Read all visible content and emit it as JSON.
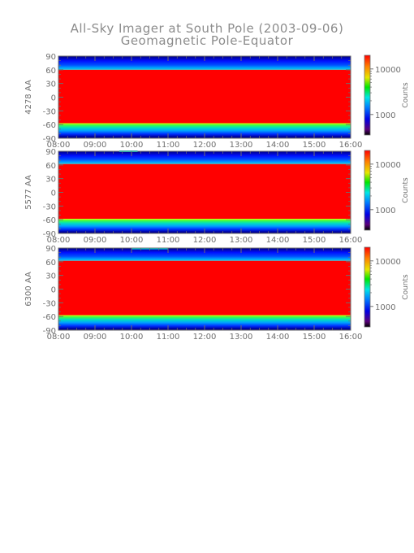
{
  "chart_data": {
    "type": "heatmap",
    "title": "All-Sky Imager at South Pole (2003-09-06)",
    "subtitle": "Geomagnetic Pole-Equator",
    "x_ticks": [
      "08:00",
      "09:00",
      "10:00",
      "11:00",
      "12:00",
      "13:00",
      "14:00",
      "15:00",
      "16:00"
    ],
    "x_range": [
      "08:00",
      "16:00"
    ],
    "y_ticks": [
      90,
      60,
      30,
      0,
      -30,
      -60,
      -90
    ],
    "y_range": [
      -90,
      90
    ],
    "colorbar": {
      "label": "Counts",
      "ticks": [
        10000,
        1000
      ],
      "scale": "log"
    },
    "panels": [
      {
        "ylabel": "4278 AA",
        "saturated_band": [
          60,
          -57
        ],
        "arc": null
      },
      {
        "ylabel": "5577 AA",
        "saturated_band": [
          62,
          -58
        ],
        "arc": {
          "time_start": "09:40",
          "time_end": "10:10",
          "lat": 90
        }
      },
      {
        "ylabel": "6300 AA",
        "saturated_band": [
          62,
          -57
        ],
        "arc": {
          "time_start": "10:00",
          "time_end": "11:00",
          "lat": 89
        }
      }
    ]
  }
}
